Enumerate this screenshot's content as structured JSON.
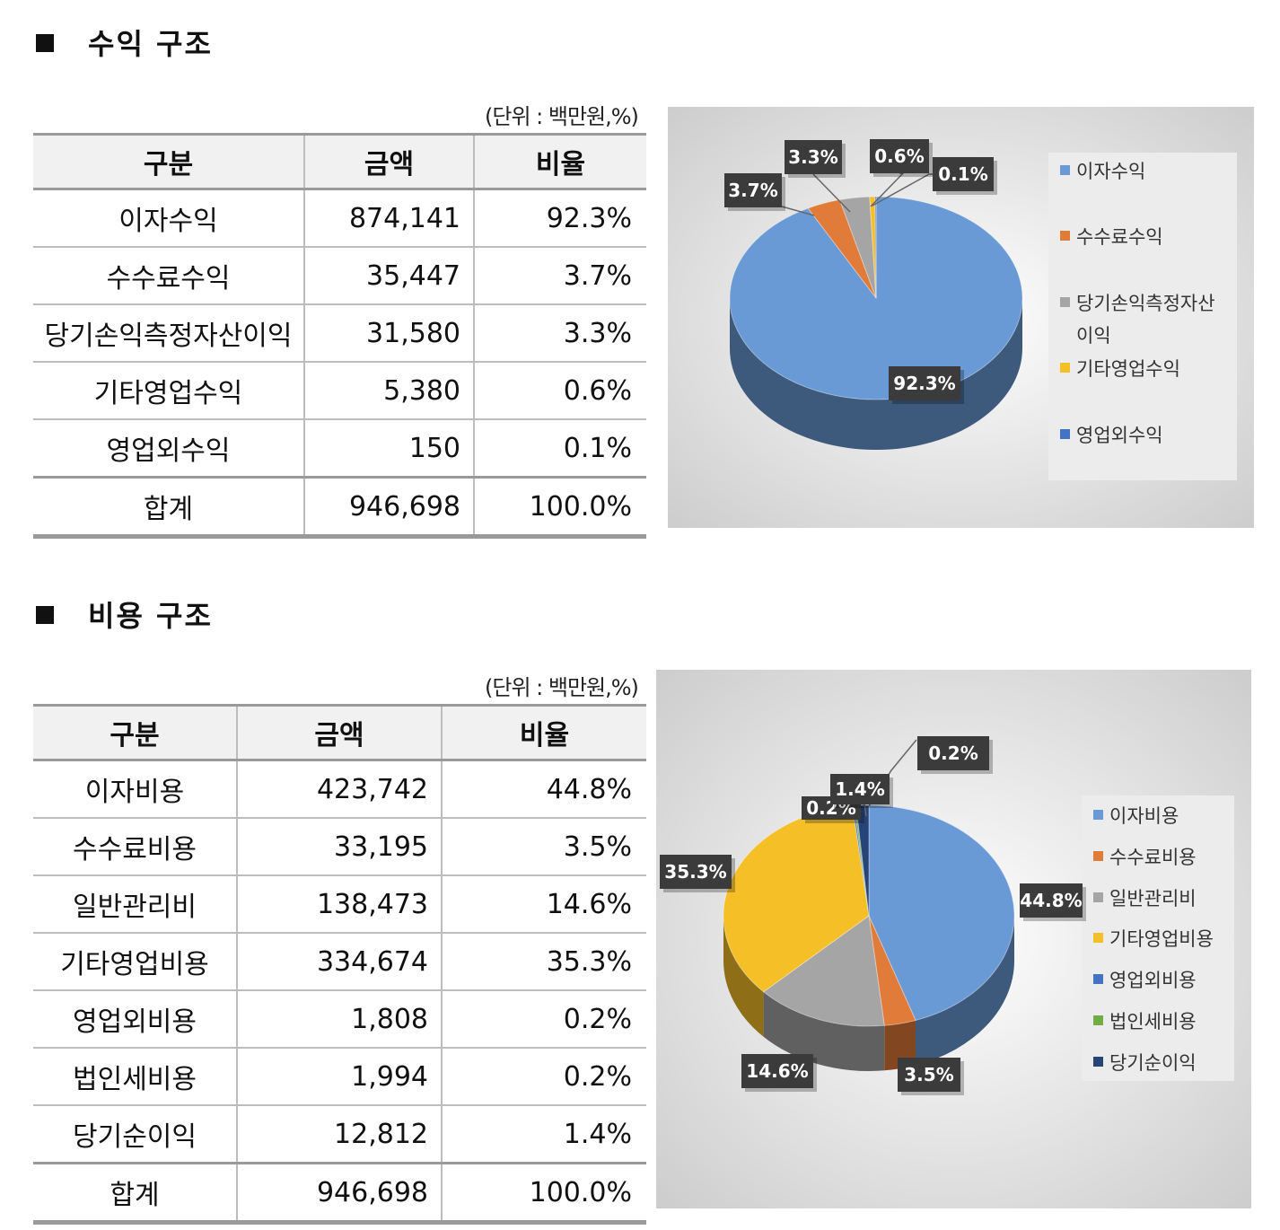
{
  "revenue": {
    "title": "수익 구조",
    "unit": "(단위 : 백만원,%)",
    "headers": [
      "구분",
      "금액",
      "비율"
    ],
    "rows": [
      {
        "name": "이자수익",
        "amount": "874,141",
        "ratio": "92.3%"
      },
      {
        "name": "수수료수익",
        "amount": "35,447",
        "ratio": "3.7%"
      },
      {
        "name": "당기손익측정자산이익",
        "amount": "31,580",
        "ratio": "3.3%"
      },
      {
        "name": "기타영업수익",
        "amount": "5,380",
        "ratio": "0.6%"
      },
      {
        "name": "영업외수익",
        "amount": "150",
        "ratio": "0.1%"
      }
    ],
    "total": {
      "name": "합계",
      "amount": "946,698",
      "ratio": "100.0%"
    }
  },
  "expense": {
    "title": "비용 구조",
    "unit": "(단위 : 백만원,%)",
    "headers": [
      "구분",
      "금액",
      "비율"
    ],
    "rows": [
      {
        "name": "이자비용",
        "amount": "423,742",
        "ratio": "44.8%"
      },
      {
        "name": "수수료비용",
        "amount": "33,195",
        "ratio": "3.5%"
      },
      {
        "name": "일반관리비",
        "amount": "138,473",
        "ratio": "14.6%"
      },
      {
        "name": "기타영업비용",
        "amount": "334,674",
        "ratio": "35.3%"
      },
      {
        "name": "영업외비용",
        "amount": "1,808",
        "ratio": "0.2%"
      },
      {
        "name": "법인세비용",
        "amount": "1,994",
        "ratio": "0.2%"
      },
      {
        "name": "당기순이익",
        "amount": "12,812",
        "ratio": "1.4%"
      }
    ],
    "total": {
      "name": "합계",
      "amount": "946,698",
      "ratio": "100.0%"
    }
  },
  "chart_data": [
    {
      "type": "pie",
      "title": "",
      "categories": [
        "이자수익",
        "수수료수익",
        "당기손익측정자산이익",
        "기타영업수익",
        "영업외수익"
      ],
      "values": [
        92.3,
        3.7,
        3.3,
        0.6,
        0.1
      ],
      "data_labels": [
        "92.3%",
        "3.7%",
        "3.3%",
        "0.6%",
        "0.1%"
      ],
      "legend_labels": [
        "이자수익",
        "수수료수익",
        "당기손익측정자산",
        "이익",
        "기타영업수익",
        "영업외수익"
      ],
      "colors": [
        "#6a9ad6",
        "#e07b39",
        "#a5a5a5",
        "#f5bf28",
        "#4472c4"
      ],
      "legend": "right"
    },
    {
      "type": "pie",
      "title": "",
      "categories": [
        "이자비용",
        "수수료비용",
        "일반관리비",
        "기타영업비용",
        "영업외비용",
        "법인세비용",
        "당기순이익"
      ],
      "values": [
        44.8,
        3.5,
        14.6,
        35.3,
        0.2,
        0.2,
        1.4
      ],
      "data_labels": [
        "44.8%",
        "3.5%",
        "14.6%",
        "35.3%",
        "0.2%",
        "0.2%",
        "1.4%"
      ],
      "colors": [
        "#6a9ad6",
        "#e07b39",
        "#a5a5a5",
        "#f5bf28",
        "#4472c4",
        "#70ad47",
        "#264478"
      ],
      "legend": "right"
    }
  ]
}
